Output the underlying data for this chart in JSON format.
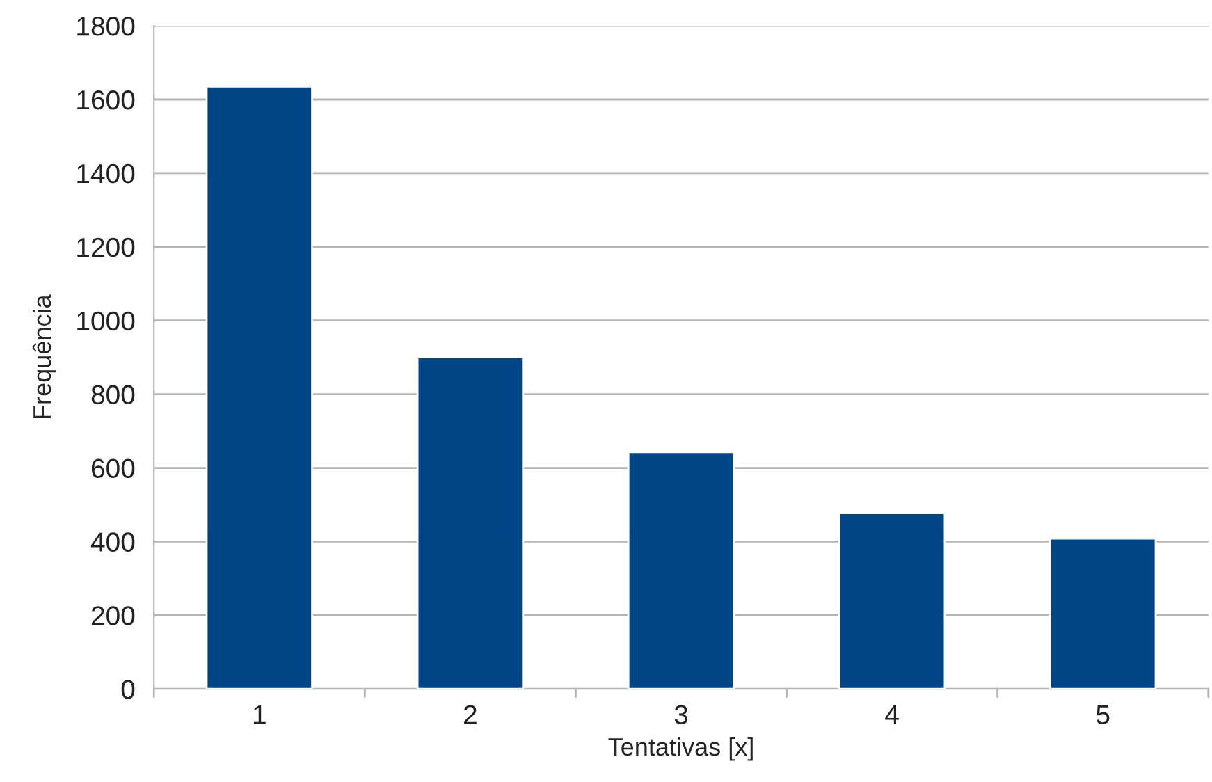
{
  "chart_data": {
    "type": "bar",
    "xlabel": "Tentativas [x]",
    "ylabel": "Frequência",
    "categories": [
      "1",
      "2",
      "3",
      "4",
      "5"
    ],
    "values": [
      1635,
      900,
      643,
      477,
      408
    ],
    "color": "#004586",
    "ylim": [
      0,
      1800
    ],
    "yticks": [
      0,
      200,
      400,
      600,
      800,
      1000,
      1200,
      1400,
      1600,
      1800
    ],
    "grid": "y",
    "legend": false
  }
}
